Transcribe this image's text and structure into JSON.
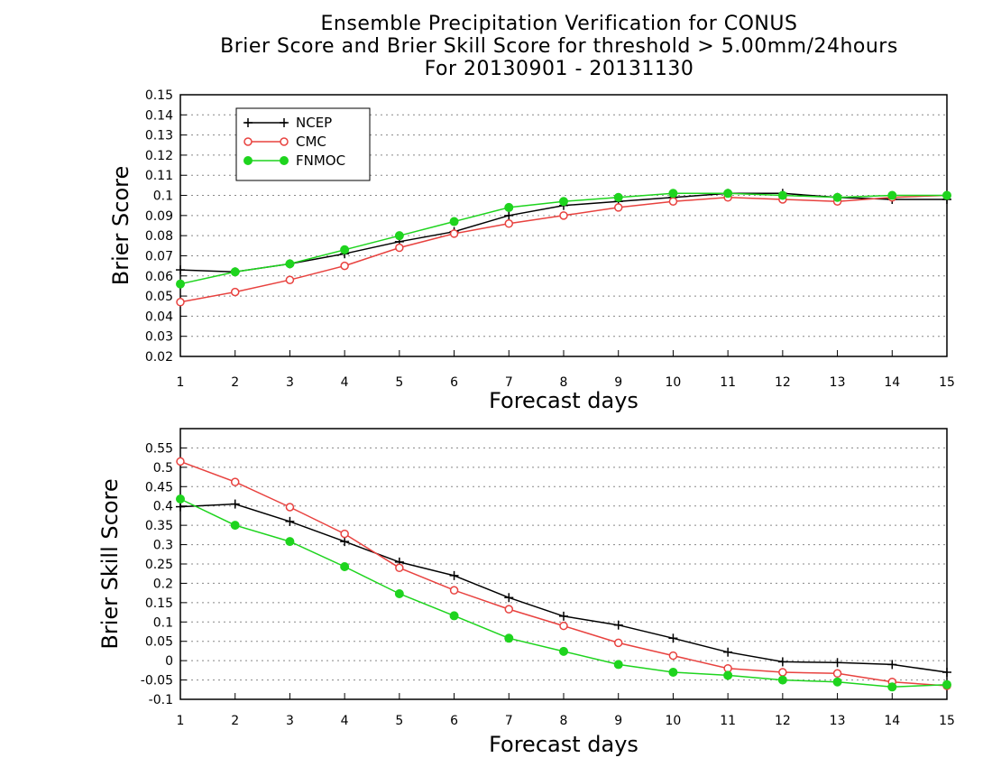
{
  "title": {
    "line1": "Ensemble Precipitation Verification for CONUS",
    "line2": "Brier Score and Brier Skill Score for threshold > 5.00mm/24hours",
    "line3": "For 20130901 - 20131130"
  },
  "colors": {
    "NCEP": "#000000",
    "CMC": "#e8423f",
    "FNMOC": "#1ed41e"
  },
  "chart_data": [
    {
      "type": "line",
      "xlabel": "Forecast days",
      "ylabel": "Brier Score",
      "xlim": [
        1,
        15
      ],
      "ylim": [
        0.02,
        0.15
      ],
      "x": [
        1,
        2,
        3,
        4,
        5,
        6,
        7,
        8,
        9,
        10,
        11,
        12,
        13,
        14,
        15
      ],
      "xticks": [
        1,
        2,
        3,
        4,
        5,
        6,
        7,
        8,
        9,
        10,
        11,
        12,
        13,
        14,
        15
      ],
      "yticks": [
        0.02,
        0.03,
        0.04,
        0.05,
        0.06,
        0.07,
        0.08,
        0.09,
        0.1,
        0.11,
        0.12,
        0.13,
        0.14,
        0.15
      ],
      "ytick_labels": [
        "0.02",
        "0.03",
        "0.04",
        "0.05",
        "0.06",
        "0.07",
        "0.08",
        "0.09",
        "0.1",
        "0.11",
        "0.12",
        "0.13",
        "0.14",
        "0.15"
      ],
      "grid": true,
      "legend": "top-left",
      "series": [
        {
          "name": "NCEP",
          "marker": "plus",
          "values": [
            0.063,
            0.062,
            0.066,
            0.071,
            0.077,
            0.082,
            0.09,
            0.095,
            0.097,
            0.099,
            0.101,
            0.101,
            0.099,
            0.098,
            0.098
          ]
        },
        {
          "name": "CMC",
          "marker": "open-circle",
          "values": [
            0.047,
            0.052,
            0.058,
            0.065,
            0.074,
            0.081,
            0.086,
            0.09,
            0.094,
            0.097,
            0.099,
            0.098,
            0.097,
            0.099,
            0.1
          ]
        },
        {
          "name": "FNMOC",
          "marker": "filled-circle",
          "values": [
            0.056,
            0.062,
            0.066,
            0.073,
            0.08,
            0.087,
            0.094,
            0.097,
            0.099,
            0.101,
            0.101,
            0.1,
            0.099,
            0.1,
            0.1
          ]
        }
      ]
    },
    {
      "type": "line",
      "xlabel": "Forecast days",
      "ylabel": "Brier Skill Score",
      "xlim": [
        1,
        15
      ],
      "ylim": [
        -0.1,
        0.6
      ],
      "x": [
        1,
        2,
        3,
        4,
        5,
        6,
        7,
        8,
        9,
        10,
        11,
        12,
        13,
        14,
        15
      ],
      "xticks": [
        1,
        2,
        3,
        4,
        5,
        6,
        7,
        8,
        9,
        10,
        11,
        12,
        13,
        14,
        15
      ],
      "yticks": [
        -0.1,
        -0.05,
        0,
        0.05,
        0.1,
        0.15,
        0.2,
        0.25,
        0.3,
        0.35,
        0.4,
        0.45,
        0.5,
        0.55
      ],
      "ytick_labels": [
        "-0.1",
        "-0.05",
        "0",
        "0.05",
        "0.1",
        "0.15",
        "0.2",
        "0.25",
        "0.3",
        "0.35",
        "0.4",
        "0.45",
        "0.5",
        "0.55"
      ],
      "grid": true,
      "series": [
        {
          "name": "NCEP",
          "marker": "plus",
          "values": [
            0.398,
            0.405,
            0.36,
            0.308,
            0.255,
            0.22,
            0.163,
            0.115,
            0.092,
            0.058,
            0.022,
            -0.003,
            -0.005,
            -0.01,
            -0.03
          ]
        },
        {
          "name": "CMC",
          "marker": "open-circle",
          "values": [
            0.515,
            0.462,
            0.397,
            0.328,
            0.24,
            0.182,
            0.133,
            0.09,
            0.046,
            0.013,
            -0.02,
            -0.03,
            -0.033,
            -0.055,
            -0.065
          ]
        },
        {
          "name": "FNMOC",
          "marker": "filled-circle",
          "values": [
            0.418,
            0.35,
            0.308,
            0.243,
            0.173,
            0.116,
            0.058,
            0.024,
            -0.01,
            -0.03,
            -0.038,
            -0.05,
            -0.055,
            -0.068,
            -0.062
          ]
        }
      ]
    }
  ]
}
